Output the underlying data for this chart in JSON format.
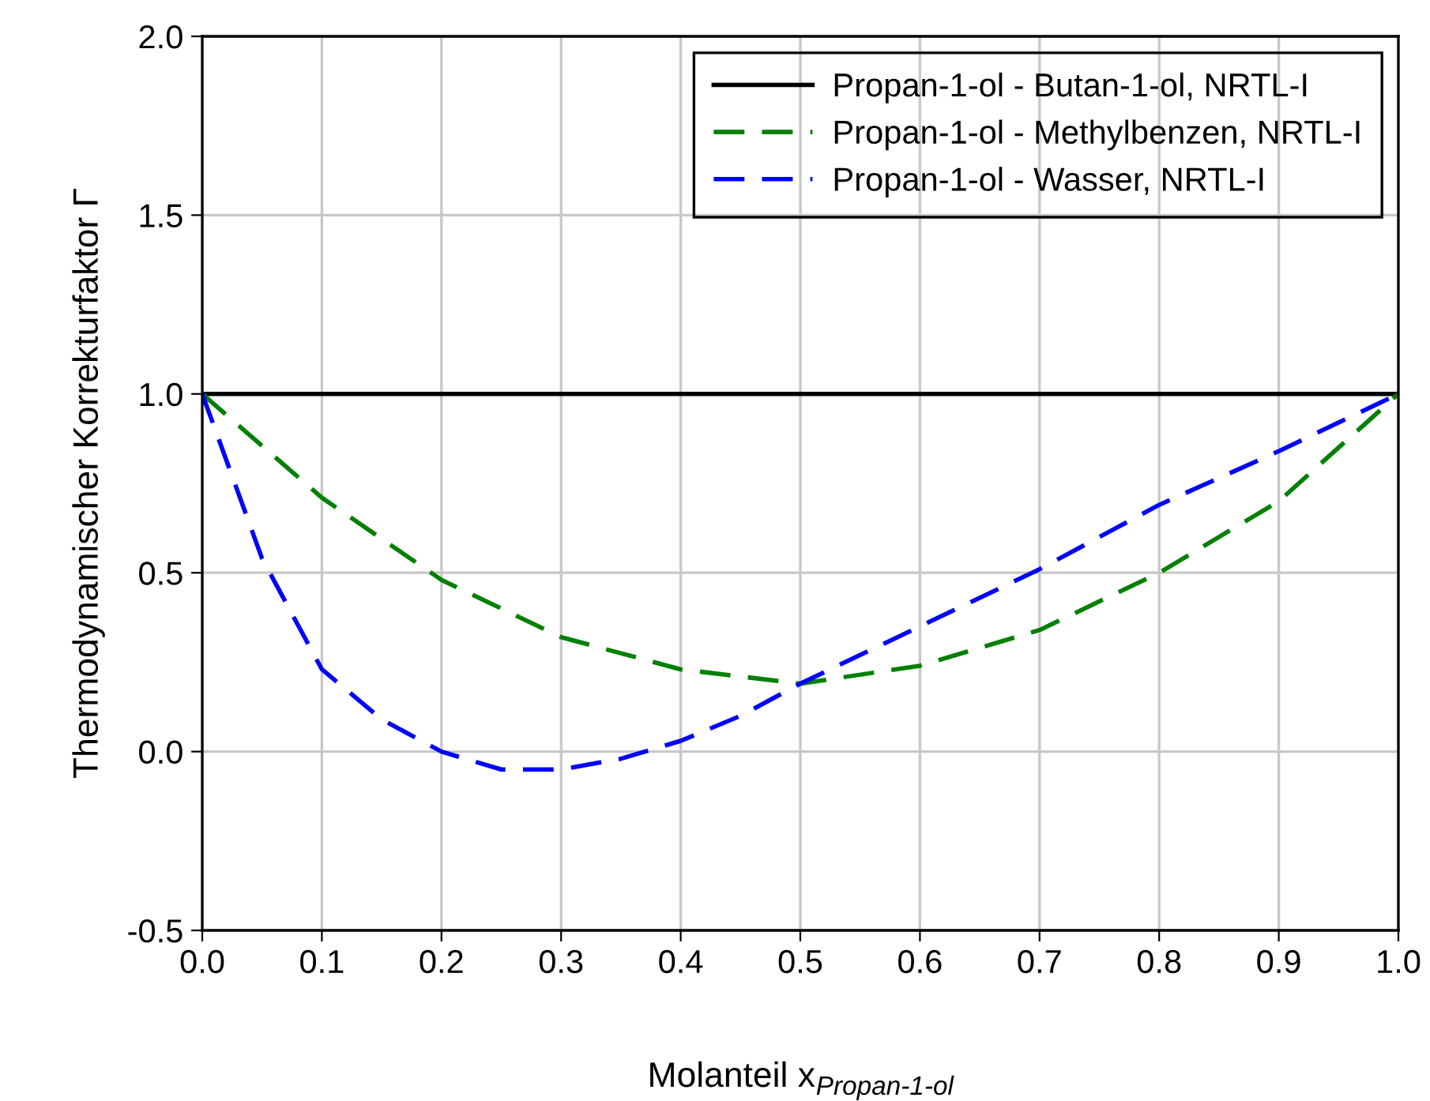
{
  "chart_data": {
    "type": "line",
    "xlabel": "Molanteil x$_{Propan-1-ol}$",
    "ylabel": "Thermodynamischer Korrekturfaktor Γ",
    "xlim": [
      0,
      1
    ],
    "ylim": [
      -0.5,
      2.0
    ],
    "xticks": [
      {
        "value": 0,
        "label": "0.0"
      },
      {
        "value": 0.1,
        "label": "0.1"
      },
      {
        "value": 0.2,
        "label": "0.2"
      },
      {
        "value": 0.3,
        "label": "0.3"
      },
      {
        "value": 0.4,
        "label": "0.4"
      },
      {
        "value": 0.5,
        "label": "0.5"
      },
      {
        "value": 0.6,
        "label": "0.6"
      },
      {
        "value": 0.7,
        "label": "0.7"
      },
      {
        "value": 0.8,
        "label": "0.8"
      },
      {
        "value": 0.9,
        "label": "0.9"
      },
      {
        "value": 1,
        "label": "1.0"
      }
    ],
    "yticks": [
      {
        "value": -0.5,
        "label": "-0.5"
      },
      {
        "value": 0,
        "label": "0.0"
      },
      {
        "value": 0.5,
        "label": "0.5"
      },
      {
        "value": 1,
        "label": "1.0"
      },
      {
        "value": 1.5,
        "label": "1.5"
      },
      {
        "value": 2,
        "label": "2.0"
      }
    ],
    "grid": true,
    "legend": "top right",
    "marker": "none",
    "series": [
      {
        "name": "Propan-1-ol - Butan-1-ol, NRTL-I",
        "color": "#000000",
        "line_style": "solid",
        "x": [
          0,
          1
        ],
        "values": [
          1.0,
          1.0
        ]
      },
      {
        "name": "Propan-1-ol - Methylbenzen, NRTL-I",
        "color": "#008000",
        "line_style": "dashed",
        "x": [
          0,
          0.1,
          0.2,
          0.3,
          0.4,
          0.5,
          0.6,
          0.7,
          0.8,
          0.9,
          1.0
        ],
        "values": [
          1.0,
          0.71,
          0.48,
          0.32,
          0.23,
          0.19,
          0.24,
          0.34,
          0.5,
          0.7,
          1.0
        ]
      },
      {
        "name": "Propan-1-ol - Wasser, NRTL-I",
        "color": "#0000ff",
        "line_style": "dashed",
        "x": [
          0,
          0.05,
          0.1,
          0.15,
          0.2,
          0.25,
          0.3,
          0.35,
          0.4,
          0.45,
          0.5,
          0.6,
          0.7,
          0.8,
          0.9,
          1.0
        ],
        "values": [
          1.0,
          0.54,
          0.23,
          0.09,
          0.0,
          -0.05,
          -0.05,
          -0.02,
          0.03,
          0.1,
          0.19,
          0.35,
          0.51,
          0.69,
          0.84,
          1.0
        ]
      }
    ]
  }
}
